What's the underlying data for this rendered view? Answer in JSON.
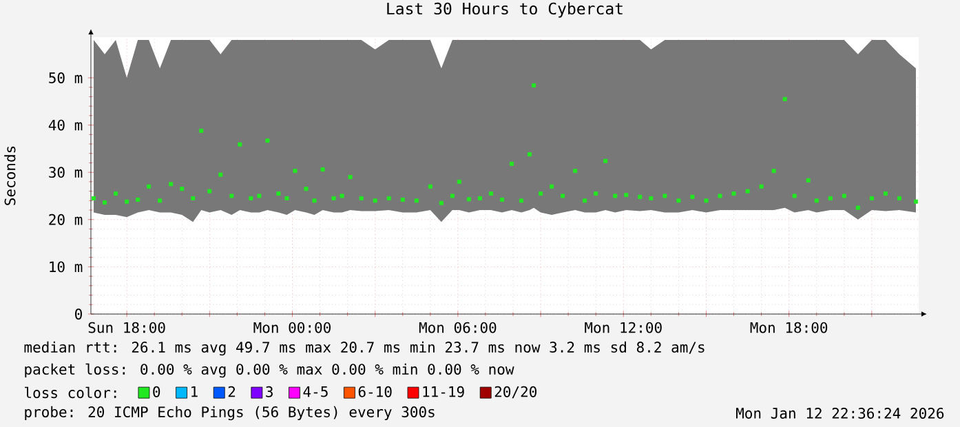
{
  "chart_data": {
    "type": "scatter",
    "title": "Last 30 Hours to Cybercat",
    "ylabel": "Seconds",
    "legend_title": "loss color:",
    "x": [
      "2026-01-11T16:48",
      "2026-01-11T17:12",
      "2026-01-11T17:36",
      "2026-01-11T18:00",
      "2026-01-11T18:24",
      "2026-01-11T18:48",
      "2026-01-11T19:12",
      "2026-01-11T19:36",
      "2026-01-11T20:00",
      "2026-01-11T20:24",
      "2026-01-11T20:42",
      "2026-01-11T21:00",
      "2026-01-11T21:24",
      "2026-01-11T21:48",
      "2026-01-11T22:06",
      "2026-01-11T22:30",
      "2026-01-11T22:48",
      "2026-01-11T23:06",
      "2026-01-11T23:30",
      "2026-01-11T23:48",
      "2026-01-12T00:06",
      "2026-01-12T00:30",
      "2026-01-12T00:48",
      "2026-01-12T01:06",
      "2026-01-12T01:30",
      "2026-01-12T01:48",
      "2026-01-12T02:06",
      "2026-01-12T02:30",
      "2026-01-12T03:00",
      "2026-01-12T03:30",
      "2026-01-12T04:00",
      "2026-01-12T04:30",
      "2026-01-12T05:00",
      "2026-01-12T05:24",
      "2026-01-12T05:48",
      "2026-01-12T06:03",
      "2026-01-12T06:24",
      "2026-01-12T06:48",
      "2026-01-12T07:12",
      "2026-01-12T07:36",
      "2026-01-12T07:57",
      "2026-01-12T08:18",
      "2026-01-12T08:36",
      "2026-01-12T08:45",
      "2026-01-12T09:00",
      "2026-01-12T09:24",
      "2026-01-12T09:48",
      "2026-01-12T10:15",
      "2026-01-12T10:36",
      "2026-01-12T11:00",
      "2026-01-12T11:21",
      "2026-01-12T11:42",
      "2026-01-12T12:06",
      "2026-01-12T12:36",
      "2026-01-12T13:00",
      "2026-01-12T13:30",
      "2026-01-12T14:00",
      "2026-01-12T14:30",
      "2026-01-12T15:00",
      "2026-01-12T15:30",
      "2026-01-12T16:00",
      "2026-01-12T16:30",
      "2026-01-12T17:00",
      "2026-01-12T17:27",
      "2026-01-12T17:51",
      "2026-01-12T18:12",
      "2026-01-12T18:42",
      "2026-01-12T19:00",
      "2026-01-12T19:30",
      "2026-01-12T20:00",
      "2026-01-12T20:30",
      "2026-01-12T21:00",
      "2026-01-12T21:30",
      "2026-01-12T22:00",
      "2026-01-12T22:36"
    ],
    "series": [
      {
        "name": "0",
        "color": "#22e822",
        "values": [
          24.5,
          23.6,
          25.5,
          23.8,
          24.2,
          27.0,
          24.0,
          27.5,
          26.5,
          24.5,
          38.8,
          26.0,
          29.5,
          25.0,
          35.9,
          24.5,
          25.0,
          36.7,
          25.5,
          24.5,
          30.3,
          26.5,
          24.0,
          30.6,
          24.5,
          25.0,
          29.0,
          24.5,
          24.0,
          24.5,
          24.2,
          24.0,
          27.0,
          23.5,
          25.0,
          28.0,
          24.3,
          24.5,
          25.5,
          24.2,
          31.8,
          24.0,
          33.8,
          48.4,
          25.5,
          27.0,
          25.0,
          30.3,
          24.0,
          25.5,
          32.4,
          25.0,
          25.2,
          24.8,
          24.5,
          25.0,
          24.0,
          24.8,
          24.0,
          25.0,
          25.5,
          26.0,
          27.0,
          30.3,
          45.5,
          25.0,
          28.3,
          24.0,
          24.5,
          25.0,
          22.5,
          24.5,
          25.5,
          24.5,
          23.8
        ],
        "lower": [
          21.5,
          21.0,
          21.0,
          20.5,
          21.5,
          22.0,
          21.5,
          21.5,
          21.0,
          19.5,
          22.0,
          21.5,
          22.0,
          21.0,
          22.0,
          21.5,
          21.5,
          22.0,
          21.5,
          21.0,
          22.0,
          21.5,
          21.0,
          22.0,
          21.5,
          21.5,
          22.0,
          21.8,
          21.8,
          22.0,
          21.5,
          21.5,
          22.0,
          19.5,
          22.0,
          22.0,
          21.5,
          22.0,
          22.0,
          21.5,
          22.0,
          21.5,
          22.0,
          22.5,
          21.5,
          21.0,
          21.5,
          22.0,
          21.5,
          21.5,
          22.0,
          21.5,
          22.0,
          21.8,
          22.0,
          21.5,
          21.5,
          22.0,
          21.5,
          22.0,
          22.0,
          22.0,
          22.0,
          22.0,
          22.5,
          21.5,
          22.0,
          21.5,
          22.0,
          22.0,
          20.0,
          22.0,
          21.8,
          22.0,
          21.5
        ],
        "upper": [
          58,
          55,
          58,
          50,
          58,
          58,
          52,
          58,
          58,
          58,
          58,
          58,
          55,
          58,
          58,
          58,
          58,
          58,
          58,
          58,
          58,
          58,
          58,
          58,
          58,
          58,
          58,
          58,
          56,
          58,
          58,
          58,
          58,
          52,
          58,
          58,
          58,
          58,
          58,
          58,
          58,
          58,
          58,
          58,
          58,
          58,
          58,
          58,
          58,
          58,
          58,
          58,
          58,
          58,
          56,
          58,
          58,
          58,
          58,
          58,
          58,
          58,
          58,
          58,
          58,
          58,
          58,
          58,
          58,
          58,
          55,
          58,
          58,
          55,
          52
        ]
      },
      {
        "name": "1",
        "color": "#00b8ff",
        "values": [
          null,
          null,
          null,
          null,
          null,
          null,
          null,
          null,
          null,
          null,
          null,
          null,
          null,
          null,
          null,
          null,
          null,
          null,
          null,
          null,
          null,
          null,
          null,
          null,
          null,
          null,
          null,
          null,
          null,
          null,
          null,
          null,
          null,
          null,
          null,
          null,
          null,
          null,
          null,
          null,
          null,
          null,
          null,
          null,
          null,
          null,
          null,
          null,
          null,
          null,
          null,
          null,
          null,
          null,
          null,
          null,
          null,
          null,
          null,
          null,
          null,
          null,
          null,
          null,
          null,
          null,
          null,
          null,
          null,
          null,
          null,
          null,
          null,
          null,
          null
        ]
      },
      {
        "name": "2",
        "color": "#0059ff",
        "values": [
          null,
          null,
          null,
          null,
          null,
          null,
          null,
          null,
          null,
          null,
          null,
          null,
          null,
          null,
          null,
          null,
          null,
          null,
          null,
          null,
          null,
          null,
          null,
          null,
          null,
          null,
          null,
          null,
          null,
          null,
          null,
          null,
          null,
          null,
          null,
          null,
          null,
          null,
          null,
          null,
          null,
          null,
          null,
          null,
          null,
          null,
          null,
          null,
          null,
          null,
          null,
          null,
          null,
          null,
          null,
          null,
          null,
          null,
          null,
          null,
          null,
          null,
          null,
          null,
          null,
          null,
          null,
          null,
          null,
          null,
          null,
          null,
          null,
          null,
          null
        ]
      },
      {
        "name": "3",
        "color": "#7e00ff",
        "values": [
          null,
          null,
          null,
          null,
          null,
          null,
          null,
          null,
          null,
          null,
          null,
          null,
          null,
          null,
          null,
          null,
          null,
          null,
          null,
          null,
          null,
          null,
          null,
          null,
          null,
          null,
          null,
          null,
          null,
          null,
          null,
          null,
          null,
          null,
          null,
          null,
          null,
          null,
          null,
          null,
          null,
          null,
          null,
          null,
          null,
          null,
          null,
          null,
          null,
          null,
          null,
          null,
          null,
          null,
          null,
          null,
          null,
          null,
          null,
          null,
          null,
          null,
          null,
          null,
          null,
          null,
          null,
          null,
          null,
          null,
          null,
          null,
          null,
          null,
          null
        ]
      },
      {
        "name": "4-5",
        "color": "#ff00ff",
        "values": [
          null,
          null,
          null,
          null,
          null,
          null,
          null,
          null,
          null,
          null,
          null,
          null,
          null,
          null,
          null,
          null,
          null,
          null,
          null,
          null,
          null,
          null,
          null,
          null,
          null,
          null,
          null,
          null,
          null,
          null,
          null,
          null,
          null,
          null,
          null,
          null,
          null,
          null,
          null,
          null,
          null,
          null,
          null,
          null,
          null,
          null,
          null,
          null,
          null,
          null,
          null,
          null,
          null,
          null,
          null,
          null,
          null,
          null,
          null,
          null,
          null,
          null,
          null,
          null,
          null,
          null,
          null,
          null,
          null,
          null,
          null,
          null,
          null,
          null,
          null
        ]
      },
      {
        "name": "6-10",
        "color": "#ff5500",
        "values": [
          null,
          null,
          null,
          null,
          null,
          null,
          null,
          null,
          null,
          null,
          null,
          null,
          null,
          null,
          null,
          null,
          null,
          null,
          null,
          null,
          null,
          null,
          null,
          null,
          null,
          null,
          null,
          null,
          null,
          null,
          null,
          null,
          null,
          null,
          null,
          null,
          null,
          null,
          null,
          null,
          null,
          null,
          null,
          null,
          null,
          null,
          null,
          null,
          null,
          null,
          null,
          null,
          null,
          null,
          null,
          null,
          null,
          null,
          null,
          null,
          null,
          null,
          null,
          null,
          null,
          null,
          null,
          null,
          null,
          null,
          null,
          null,
          null,
          null,
          null
        ]
      },
      {
        "name": "11-19",
        "color": "#ff0000",
        "values": [
          null,
          null,
          null,
          null,
          null,
          null,
          null,
          null,
          null,
          null,
          null,
          null,
          null,
          null,
          null,
          null,
          null,
          null,
          null,
          null,
          null,
          null,
          null,
          null,
          null,
          null,
          null,
          null,
          null,
          null,
          null,
          null,
          null,
          null,
          null,
          null,
          null,
          null,
          null,
          null,
          null,
          null,
          null,
          null,
          null,
          null,
          null,
          null,
          null,
          null,
          null,
          null,
          null,
          null,
          null,
          null,
          null,
          null,
          null,
          null,
          null,
          null,
          null,
          null,
          null,
          null,
          null,
          null,
          null,
          null,
          null,
          null,
          null,
          null,
          null
        ]
      },
      {
        "name": "20/20",
        "color": "#a10000",
        "values": [
          null,
          null,
          null,
          null,
          null,
          null,
          null,
          null,
          null,
          null,
          null,
          null,
          null,
          null,
          null,
          null,
          null,
          null,
          null,
          null,
          null,
          null,
          null,
          null,
          null,
          null,
          null,
          null,
          null,
          null,
          null,
          null,
          null,
          null,
          null,
          null,
          null,
          null,
          null,
          null,
          null,
          null,
          null,
          null,
          null,
          null,
          null,
          null,
          null,
          null,
          null,
          null,
          null,
          null,
          null,
          null,
          null,
          null,
          null,
          null,
          null,
          null,
          null,
          null,
          null,
          null,
          null,
          null,
          null,
          null,
          null,
          null,
          null,
          null,
          null
        ]
      }
    ],
    "xlim": [
      "2026-01-11T16:42",
      "2026-01-12T22:42"
    ],
    "ylim": [
      0,
      58.6
    ],
    "xticks": [
      {
        "value": "2026-01-11T18:00",
        "label": "Sun 18:00"
      },
      {
        "value": "2026-01-11T21:00",
        "label": null
      },
      {
        "value": "2026-01-12T00:00",
        "label": "Mon 00:00"
      },
      {
        "value": "2026-01-12T03:00",
        "label": null
      },
      {
        "value": "2026-01-12T06:00",
        "label": "Mon 06:00"
      },
      {
        "value": "2026-01-12T09:00",
        "label": null
      },
      {
        "value": "2026-01-12T12:00",
        "label": "Mon 12:00"
      },
      {
        "value": "2026-01-12T15:00",
        "label": null
      },
      {
        "value": "2026-01-12T18:00",
        "label": "Mon 18:00"
      },
      {
        "value": "2026-01-12T21:00",
        "label": null
      }
    ],
    "yticks": [
      0,
      {
        "value": 10,
        "label": "10 m"
      },
      {
        "value": 20,
        "label": "20 m"
      },
      {
        "value": 30,
        "label": "30 m"
      },
      {
        "value": 40,
        "label": "40 m"
      },
      {
        "value": 50,
        "label": "50 m"
      }
    ],
    "grid": true,
    "legend": "bottom",
    "marker": "square",
    "annotations": [
      "median rtt:  26.1 ms avg  49.7 ms max  20.7 ms min  23.7 ms now  3.2 ms sd  8.2  am/s",
      "packet loss: 0.00 % avg  0.00 % max  0.00 % min  0.00 % now",
      "probe:       20 ICMP Echo Pings (56 Bytes) every 300s",
      "Mon Jan 12 22:36:24 2026"
    ]
  }
}
